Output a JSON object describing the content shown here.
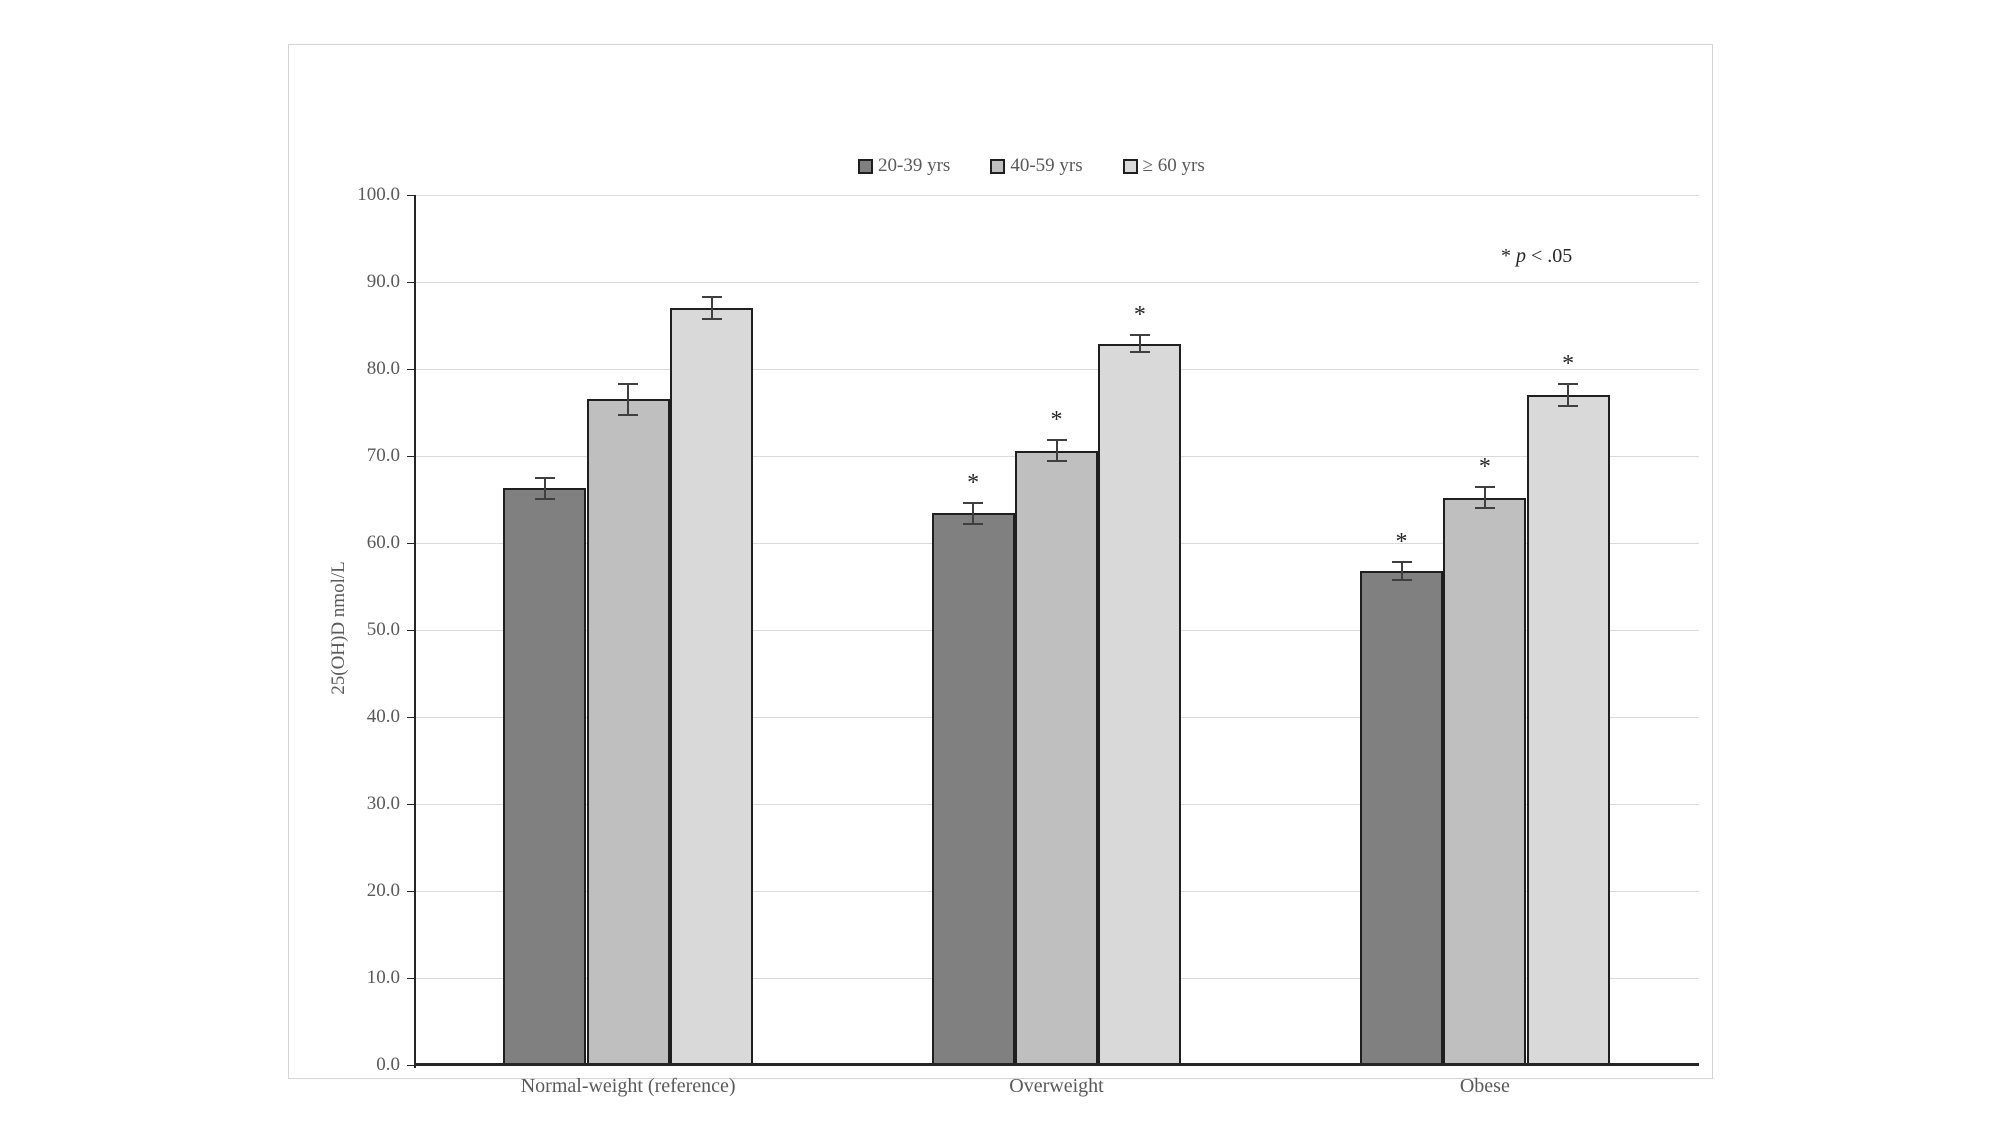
{
  "figure": {
    "background": "#ffffff",
    "border_color": "#d4d4d4"
  },
  "annotation": {
    "star": "* ",
    "variable": "p",
    "comparison": " < .05"
  },
  "chart_data": {
    "type": "bar",
    "title": "",
    "xlabel": "",
    "ylabel": "25(OH)D nmol/L",
    "ylim": [
      0,
      100
    ],
    "ytick_step": 10,
    "grid": true,
    "legend_position": "top-center",
    "gridline_color": "#d9d9d9",
    "axis_color": "#262626",
    "bar_border_color": "#1f1f1f",
    "error_bar_color": "#3f3f3f",
    "text_color": "#595959",
    "categories": [
      "Normal-weight (reference)",
      "Overweight",
      "Obese"
    ],
    "series": [
      {
        "name": "20-39 yrs",
        "color": "#808080",
        "values": [
          66.3,
          63.4,
          56.8
        ],
        "error_bars": [
          1.2,
          1.2,
          1.0
        ],
        "significant": [
          false,
          true,
          true
        ]
      },
      {
        "name": "40-59 yrs",
        "color": "#bfbfbf",
        "values": [
          76.5,
          70.6,
          65.2
        ],
        "error_bars": [
          1.8,
          1.2,
          1.2
        ],
        "significant": [
          false,
          true,
          true
        ]
      },
      {
        "name": "≥ 60 yrs",
        "color": "#d9d9d9",
        "values": [
          87.0,
          82.9,
          77.0
        ],
        "error_bars": [
          1.3,
          1.0,
          1.3
        ],
        "significant": [
          false,
          true,
          true
        ]
      }
    ],
    "significance_note": "* p < .05"
  }
}
